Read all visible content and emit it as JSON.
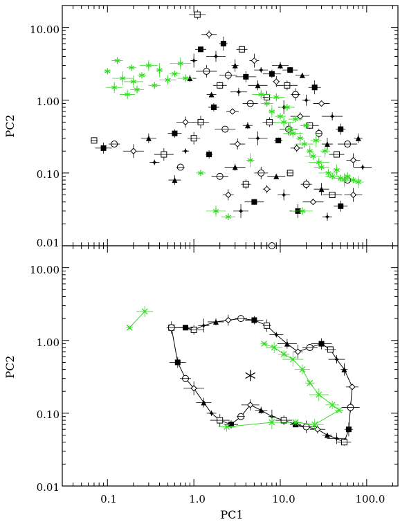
{
  "chart_data": [
    {
      "type": "scatter",
      "panel": "top",
      "title": "",
      "xlabel": "",
      "ylabel": "PC2",
      "xscale": "log",
      "yscale": "log",
      "xlim": [
        0.03,
        230
      ],
      "ylim": [
        0.01,
        20
      ],
      "x_tick_labels": [
        "0.1",
        "1.0",
        "10.0",
        "100.0"
      ],
      "y_ticks": [
        10,
        1,
        0.1,
        0.01
      ],
      "y_tick_labels": [
        "10.00",
        "1.00",
        "0.10",
        "0.01"
      ],
      "grid": false,
      "series_colors": {
        "main": "#000000",
        "highlight": "#33dd22"
      },
      "series": [
        {
          "marker": "mixed (open squares, filled squares, open circles, diamonds, triangles, stars)",
          "color": "#000000",
          "error_bars": true,
          "points": [
            {
              "x": 0.07,
              "y": 0.28
            },
            {
              "x": 0.09,
              "y": 0.22
            },
            {
              "x": 0.12,
              "y": 0.25
            },
            {
              "x": 0.2,
              "y": 0.2
            },
            {
              "x": 0.3,
              "y": 0.3
            },
            {
              "x": 0.35,
              "y": 0.14
            },
            {
              "x": 0.45,
              "y": 0.18
            },
            {
              "x": 0.6,
              "y": 0.35
            },
            {
              "x": 0.7,
              "y": 0.12
            },
            {
              "x": 0.8,
              "y": 0.5
            },
            {
              "x": 0.9,
              "y": 2.0
            },
            {
              "x": 1.0,
              "y": 3.5
            },
            {
              "x": 1.1,
              "y": 15.0
            },
            {
              "x": 1.2,
              "y": 5.0
            },
            {
              "x": 1.4,
              "y": 2.5
            },
            {
              "x": 1.5,
              "y": 8.0
            },
            {
              "x": 1.6,
              "y": 1.2
            },
            {
              "x": 1.8,
              "y": 4.0
            },
            {
              "x": 2.0,
              "y": 1.6
            },
            {
              "x": 2.2,
              "y": 6.0
            },
            {
              "x": 2.5,
              "y": 2.2
            },
            {
              "x": 2.8,
              "y": 0.7
            },
            {
              "x": 3.0,
              "y": 3.0
            },
            {
              "x": 3.3,
              "y": 1.3
            },
            {
              "x": 3.6,
              "y": 5.0
            },
            {
              "x": 4.0,
              "y": 2.1
            },
            {
              "x": 4.5,
              "y": 0.9
            },
            {
              "x": 5.0,
              "y": 3.5
            },
            {
              "x": 5.5,
              "y": 1.6
            },
            {
              "x": 6.0,
              "y": 2.6
            },
            {
              "x": 7.0,
              "y": 1.1
            },
            {
              "x": 8.0,
              "y": 2.3
            },
            {
              "x": 8.0,
              "y": 0.01
            },
            {
              "x": 9.0,
              "y": 1.8
            },
            {
              "x": 10.0,
              "y": 3.0
            },
            {
              "x": 11.0,
              "y": 0.8
            },
            {
              "x": 12.0,
              "y": 1.6
            },
            {
              "x": 13.0,
              "y": 2.6
            },
            {
              "x": 15.0,
              "y": 1.2
            },
            {
              "x": 17.0,
              "y": 0.6
            },
            {
              "x": 18.0,
              "y": 2.2
            },
            {
              "x": 20.0,
              "y": 1.0
            },
            {
              "x": 22.0,
              "y": 0.45
            },
            {
              "x": 25.0,
              "y": 1.5
            },
            {
              "x": 28.0,
              "y": 0.35
            },
            {
              "x": 30.0,
              "y": 0.9
            },
            {
              "x": 35.0,
              "y": 0.25
            },
            {
              "x": 40.0,
              "y": 0.6
            },
            {
              "x": 45.0,
              "y": 0.18
            },
            {
              "x": 50.0,
              "y": 0.4
            },
            {
              "x": 60.0,
              "y": 0.25
            },
            {
              "x": 70.0,
              "y": 0.15
            },
            {
              "x": 80.0,
              "y": 0.3
            },
            {
              "x": 90.0,
              "y": 0.12
            },
            {
              "x": 1.0,
              "y": 0.3
            },
            {
              "x": 1.5,
              "y": 0.18
            },
            {
              "x": 2.0,
              "y": 0.09
            },
            {
              "x": 2.5,
              "y": 0.05
            },
            {
              "x": 3.0,
              "y": 0.12
            },
            {
              "x": 3.5,
              "y": 0.03
            },
            {
              "x": 4.0,
              "y": 0.07
            },
            {
              "x": 5.0,
              "y": 0.04
            },
            {
              "x": 6.0,
              "y": 0.1
            },
            {
              "x": 7.0,
              "y": 0.06
            },
            {
              "x": 9.0,
              "y": 0.09
            },
            {
              "x": 11.0,
              "y": 0.05
            },
            {
              "x": 13.0,
              "y": 0.1
            },
            {
              "x": 16.0,
              "y": 0.03
            },
            {
              "x": 20.0,
              "y": 0.07
            },
            {
              "x": 24.0,
              "y": 0.04
            },
            {
              "x": 30.0,
              "y": 0.06
            },
            {
              "x": 35.0,
              "y": 0.025
            },
            {
              "x": 40.0,
              "y": 0.05
            },
            {
              "x": 50.0,
              "y": 0.035
            },
            {
              "x": 60.0,
              "y": 0.08
            },
            {
              "x": 70.0,
              "y": 0.05
            },
            {
              "x": 0.6,
              "y": 0.08
            },
            {
              "x": 0.8,
              "y": 0.2
            },
            {
              "x": 1.2,
              "y": 0.5
            },
            {
              "x": 1.7,
              "y": 0.8
            },
            {
              "x": 2.3,
              "y": 0.4
            },
            {
              "x": 3.2,
              "y": 0.25
            },
            {
              "x": 4.2,
              "y": 0.45
            },
            {
              "x": 5.5,
              "y": 0.3
            },
            {
              "x": 7.5,
              "y": 0.5
            },
            {
              "x": 9.5,
              "y": 0.28
            },
            {
              "x": 12.5,
              "y": 0.4
            },
            {
              "x": 15.5,
              "y": 0.22
            }
          ]
        },
        {
          "marker": "asterisk",
          "color": "#33dd22",
          "error_bars": true,
          "points": [
            {
              "x": 0.1,
              "y": 2.5
            },
            {
              "x": 0.12,
              "y": 1.5
            },
            {
              "x": 0.13,
              "y": 3.5
            },
            {
              "x": 0.15,
              "y": 2.0
            },
            {
              "x": 0.17,
              "y": 1.2
            },
            {
              "x": 0.19,
              "y": 2.8
            },
            {
              "x": 0.2,
              "y": 1.8
            },
            {
              "x": 0.22,
              "y": 1.4
            },
            {
              "x": 0.25,
              "y": 2.2
            },
            {
              "x": 0.3,
              "y": 3.0
            },
            {
              "x": 0.35,
              "y": 1.6
            },
            {
              "x": 0.4,
              "y": 2.6
            },
            {
              "x": 0.5,
              "y": 1.9
            },
            {
              "x": 0.6,
              "y": 2.3
            },
            {
              "x": 0.7,
              "y": 3.2
            },
            {
              "x": 0.8,
              "y": 2.0
            },
            {
              "x": 1.2,
              "y": 0.1
            },
            {
              "x": 1.8,
              "y": 0.03
            },
            {
              "x": 2.5,
              "y": 0.025
            },
            {
              "x": 4.5,
              "y": 0.15
            },
            {
              "x": 6.0,
              "y": 1.2
            },
            {
              "x": 7.0,
              "y": 0.9
            },
            {
              "x": 8.0,
              "y": 0.7
            },
            {
              "x": 9.0,
              "y": 1.1
            },
            {
              "x": 10.0,
              "y": 0.6
            },
            {
              "x": 11.0,
              "y": 0.5
            },
            {
              "x": 12.0,
              "y": 0.8
            },
            {
              "x": 13.0,
              "y": 0.4
            },
            {
              "x": 14.0,
              "y": 0.35
            },
            {
              "x": 15.0,
              "y": 0.55
            },
            {
              "x": 17.0,
              "y": 0.3
            },
            {
              "x": 19.0,
              "y": 0.25
            },
            {
              "x": 20.0,
              "y": 0.45
            },
            {
              "x": 22.0,
              "y": 0.2
            },
            {
              "x": 24.0,
              "y": 0.17
            },
            {
              "x": 26.0,
              "y": 0.28
            },
            {
              "x": 28.0,
              "y": 0.14
            },
            {
              "x": 30.0,
              "y": 0.12
            },
            {
              "x": 33.0,
              "y": 0.2
            },
            {
              "x": 36.0,
              "y": 0.1
            },
            {
              "x": 40.0,
              "y": 0.09
            },
            {
              "x": 45.0,
              "y": 0.11
            },
            {
              "x": 50.0,
              "y": 0.085
            },
            {
              "x": 55.0,
              "y": 0.08
            },
            {
              "x": 60.0,
              "y": 0.09
            },
            {
              "x": 70.0,
              "y": 0.08
            },
            {
              "x": 80.0,
              "y": 0.075
            },
            {
              "x": 18.0,
              "y": 0.03
            }
          ]
        }
      ]
    },
    {
      "type": "line",
      "panel": "bottom",
      "title": "",
      "xlabel": "PC1",
      "ylabel": "PC2",
      "xscale": "log",
      "yscale": "log",
      "xlim": [
        0.03,
        230
      ],
      "ylim": [
        0.01,
        20
      ],
      "x_ticks": [
        0.1,
        1,
        10,
        100
      ],
      "x_tick_labels": [
        "0.1",
        "1.0",
        "10.0",
        "100.0"
      ],
      "y_ticks": [
        10,
        1,
        0.1,
        0.01
      ],
      "y_tick_labels": [
        "10.00",
        "1.00",
        "0.10",
        "0.01"
      ],
      "grid": false,
      "series": [
        {
          "marker": "mixed (open squares, filled squares, open circles, diamonds, triangles, stars)",
          "color": "#000000",
          "connected": true,
          "points": [
            {
              "x": 0.55,
              "y": 1.5
            },
            {
              "x": 0.65,
              "y": 0.5
            },
            {
              "x": 0.8,
              "y": 0.3
            },
            {
              "x": 1.0,
              "y": 0.22
            },
            {
              "x": 1.3,
              "y": 0.14
            },
            {
              "x": 1.6,
              "y": 0.1
            },
            {
              "x": 2.0,
              "y": 0.08
            },
            {
              "x": 2.7,
              "y": 0.07
            },
            {
              "x": 3.5,
              "y": 0.09
            },
            {
              "x": 4.5,
              "y": 0.13
            },
            {
              "x": 6.0,
              "y": 0.11
            },
            {
              "x": 8.0,
              "y": 0.09
            },
            {
              "x": 11.0,
              "y": 0.08
            },
            {
              "x": 15.0,
              "y": 0.07
            },
            {
              "x": 20.0,
              "y": 0.065
            },
            {
              "x": 27.0,
              "y": 0.06
            },
            {
              "x": 35.0,
              "y": 0.05
            },
            {
              "x": 45.0,
              "y": 0.045
            },
            {
              "x": 55.0,
              "y": 0.04
            },
            {
              "x": 62.0,
              "y": 0.06
            },
            {
              "x": 65.0,
              "y": 0.12
            },
            {
              "x": 68.0,
              "y": 0.23
            },
            {
              "x": 55.0,
              "y": 0.4
            },
            {
              "x": 45.0,
              "y": 0.55
            },
            {
              "x": 38.0,
              "y": 0.75
            },
            {
              "x": 30.0,
              "y": 0.9
            },
            {
              "x": 22.0,
              "y": 0.8
            },
            {
              "x": 16.0,
              "y": 0.7
            },
            {
              "x": 12.0,
              "y": 0.9
            },
            {
              "x": 9.0,
              "y": 1.2
            },
            {
              "x": 7.0,
              "y": 1.6
            },
            {
              "x": 5.0,
              "y": 1.9
            },
            {
              "x": 3.5,
              "y": 2.0
            },
            {
              "x": 2.5,
              "y": 1.9
            },
            {
              "x": 1.8,
              "y": 1.8
            },
            {
              "x": 1.3,
              "y": 1.6
            },
            {
              "x": 1.0,
              "y": 1.4
            },
            {
              "x": 0.8,
              "y": 1.5
            },
            {
              "x": 0.55,
              "y": 1.5
            }
          ]
        },
        {
          "marker": "x",
          "color": "#33dd22",
          "connected": true,
          "points": [
            {
              "x": 0.18,
              "y": 1.5
            },
            {
              "x": 0.27,
              "y": 2.5
            }
          ]
        },
        {
          "marker": "x",
          "color": "#33dd22",
          "connected": true,
          "points": [
            {
              "x": 6.5,
              "y": 0.9
            },
            {
              "x": 8.5,
              "y": 0.8
            },
            {
              "x": 11.0,
              "y": 0.65
            },
            {
              "x": 14.0,
              "y": 0.55
            },
            {
              "x": 18.0,
              "y": 0.4
            },
            {
              "x": 22.0,
              "y": 0.26
            },
            {
              "x": 28.0,
              "y": 0.18
            },
            {
              "x": 40.0,
              "y": 0.13
            },
            {
              "x": 48.0,
              "y": 0.11
            },
            {
              "x": 25.0,
              "y": 0.07
            },
            {
              "x": 15.0,
              "y": 0.075
            },
            {
              "x": 8.0,
              "y": 0.075
            },
            {
              "x": 2.4,
              "y": 0.065
            }
          ]
        },
        {
          "marker": "big-asterisk",
          "color": "#000000",
          "connected": false,
          "points": [
            {
              "x": 4.5,
              "y": 0.33
            }
          ]
        }
      ]
    }
  ],
  "axes_labels": {
    "top_ylabel": "PC2",
    "bottom_ylabel": "PC2",
    "bottom_xlabel": "PC1"
  },
  "tick_labels": {
    "x": [
      "0.1",
      "1.0",
      "10.0",
      "100.0"
    ],
    "y": [
      "10.00",
      "1.00",
      "0.10",
      "0.01"
    ]
  }
}
